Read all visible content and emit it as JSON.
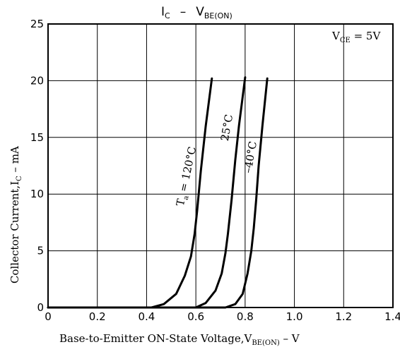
{
  "chart_data": {
    "type": "line",
    "title": {
      "main": "I",
      "main_sub": "C",
      "dash": "–",
      "right": "V",
      "right_sub": "BE(ON)"
    },
    "xlabel": {
      "main": "Base-to-Emitter ON-State Voltage,V",
      "sub": "BE(ON)",
      "unit": " – V"
    },
    "ylabel": {
      "main": "Collector Current,I",
      "sub": "C",
      "unit": " – mA"
    },
    "xlim": [
      0,
      1.4
    ],
    "ylim": [
      0,
      25
    ],
    "x_ticks": [
      "0",
      "0.2",
      "0.4",
      "0.6",
      "0.8",
      "1.0",
      "1.2",
      "1.4"
    ],
    "y_ticks": [
      "0",
      "5",
      "10",
      "15",
      "20",
      "25"
    ],
    "grid": true,
    "condition": {
      "main": "V",
      "sub": "CE",
      "rest": " = 5V"
    },
    "series": [
      {
        "name": "T_a = 120°C",
        "label_prefix": "T",
        "label_sub": "a",
        "label_rest": " = 120°C",
        "x": [
          0.42,
          0.47,
          0.52,
          0.555,
          0.58,
          0.595,
          0.605,
          0.62,
          0.64,
          0.665
        ],
        "y": [
          0,
          0.3,
          1.2,
          2.8,
          4.5,
          6.5,
          8.5,
          12,
          16,
          20.2
        ]
      },
      {
        "name": "25°C",
        "label_prefix": "",
        "label_sub": "",
        "label_rest": "25°C",
        "x": [
          0.6,
          0.64,
          0.68,
          0.705,
          0.72,
          0.73,
          0.745,
          0.76,
          0.775,
          0.8
        ],
        "y": [
          0,
          0.4,
          1.5,
          3.0,
          4.8,
          6.5,
          9.5,
          13,
          16,
          20.3
        ]
      },
      {
        "name": "–40°C",
        "label_prefix": "",
        "label_sub": "",
        "label_rest": "–40°C",
        "x": [
          0.72,
          0.76,
          0.79,
          0.81,
          0.825,
          0.835,
          0.845,
          0.855,
          0.87,
          0.89
        ],
        "y": [
          0,
          0.3,
          1.2,
          3.0,
          5.0,
          7.0,
          9.5,
          12.5,
          16,
          20.2
        ]
      }
    ]
  }
}
